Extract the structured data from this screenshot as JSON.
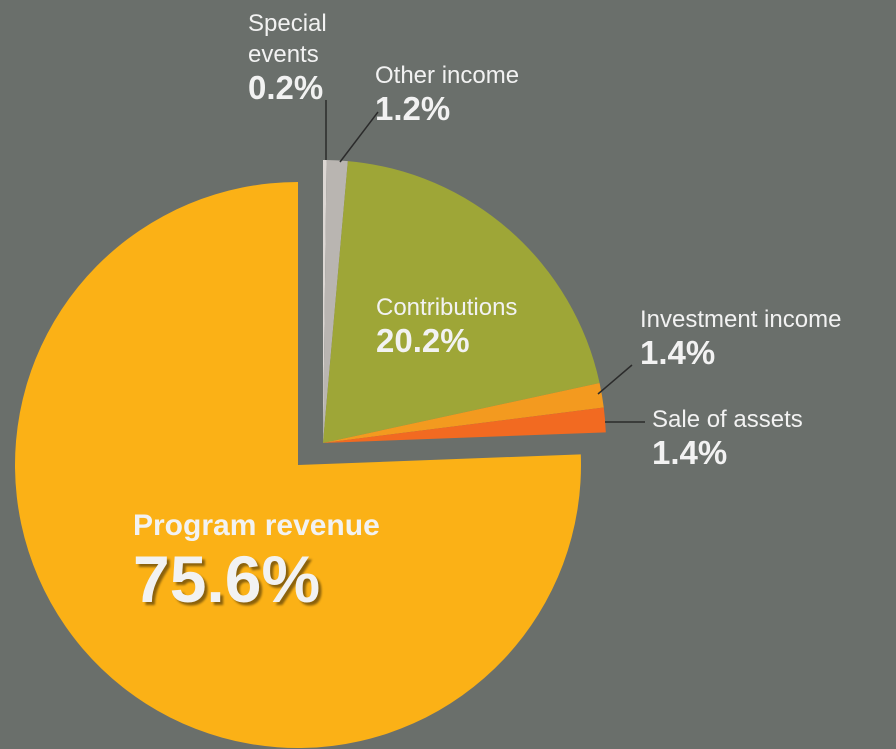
{
  "chart_data": {
    "type": "pie",
    "categories": [
      "Special events",
      "Other income",
      "Contributions",
      "Investment income",
      "Sale of assets",
      "Program revenue"
    ],
    "values": [
      0.2,
      1.2,
      20.2,
      1.4,
      1.4,
      75.6
    ],
    "value_labels": [
      "0.2%",
      "1.2%",
      "20.2%",
      "1.4%",
      "1.4%",
      "75.6%"
    ],
    "colors": [
      "#dcd7d3",
      "#b9b5b1",
      "#9ea637",
      "#f39a1f",
      "#f26a21",
      "#fbb116"
    ],
    "exploded": "Program revenue"
  }
}
